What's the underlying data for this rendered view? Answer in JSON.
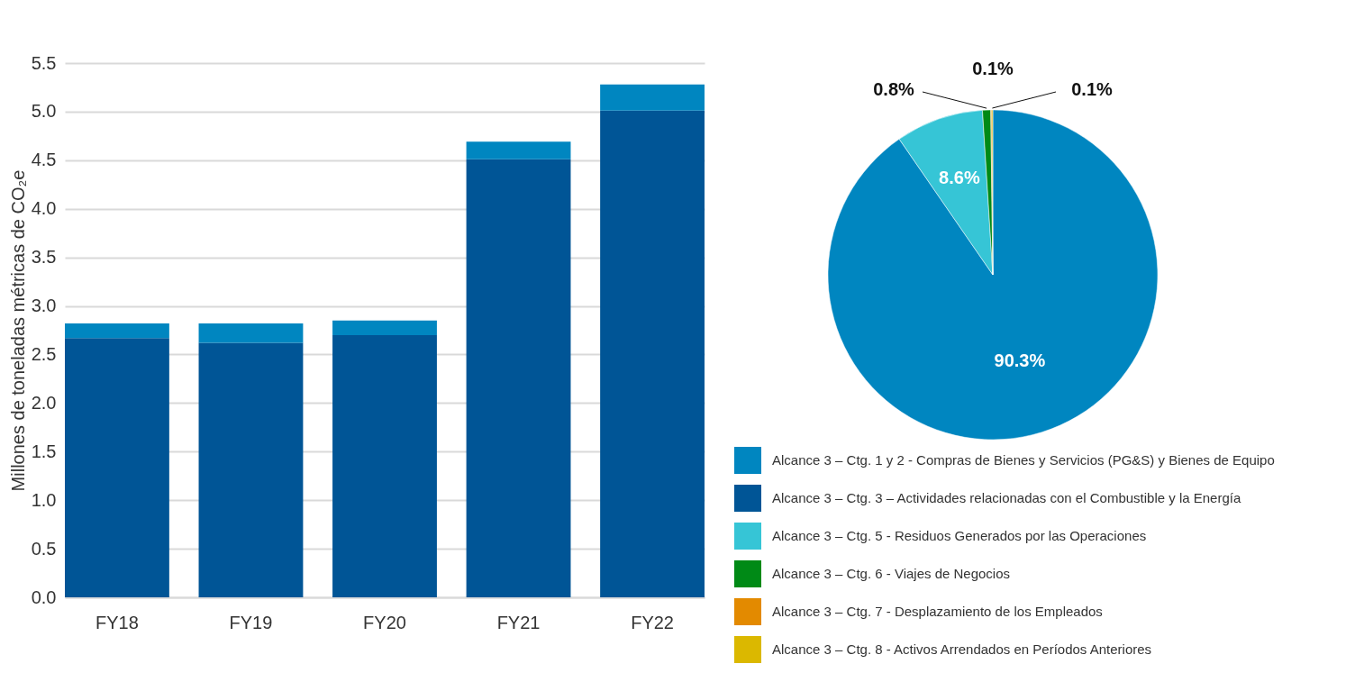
{
  "chart_data": [
    {
      "type": "bar",
      "stacked": true,
      "ylabel": "Millones de toneladas métricas de CO₂e",
      "categories": [
        "FY18",
        "FY19",
        "FY20",
        "FY21",
        "FY22"
      ],
      "series": [
        {
          "name": "Alcance 3 – Ctg. 3 – Actividades relacionadas con el Combustible y la Energía",
          "color": "#005596",
          "values": [
            2.67,
            2.62,
            2.7,
            4.51,
            5.01
          ]
        },
        {
          "color": "#0086c0",
          "values": [
            0.15,
            0.2,
            0.15,
            0.18,
            0.27
          ]
        }
      ],
      "ylim": [
        0,
        5.5
      ],
      "yticks": [
        {
          "value": 0,
          "label": "0.0"
        },
        0.5,
        {
          "value": 1,
          "label": "1.0"
        },
        1.5,
        {
          "value": 2,
          "label": "2.0"
        },
        2.5,
        {
          "value": 3,
          "label": "3.0"
        },
        3.5,
        {
          "value": 4,
          "label": "4.0"
        },
        4.5,
        {
          "value": 5,
          "label": "5.0"
        },
        5.5
      ],
      "grid": "y",
      "legend": "right"
    },
    {
      "type": "pie",
      "categories": [
        "Alcance 3 – Ctg. 1 y 2 - Compras de Bienes y Servicios (PG&S) y Bienes de Equipo",
        "Alcance 3 – Ctg. 5 - Residuos Generados por las Operaciones",
        "Alcance 3 – Ctg. 6 - Viajes de Negocios",
        "Alcance 3 – Ctg. 7 - Desplazamiento de los Empleados",
        "Alcance 3 – Ctg. 8 - Activos Arrendados en Períodos Anteriores"
      ],
      "values": [
        90.3,
        8.6,
        0.8,
        0.1,
        0.1
      ],
      "colors": [
        "#0086c0",
        "#36c5d6",
        "#008a16",
        "#e38a00",
        "#dbb800"
      ],
      "value_labels": [
        "90.3%",
        "8.6%",
        "0.8%",
        "0.1%",
        "0.1%"
      ],
      "legend": "bottom"
    }
  ]
}
